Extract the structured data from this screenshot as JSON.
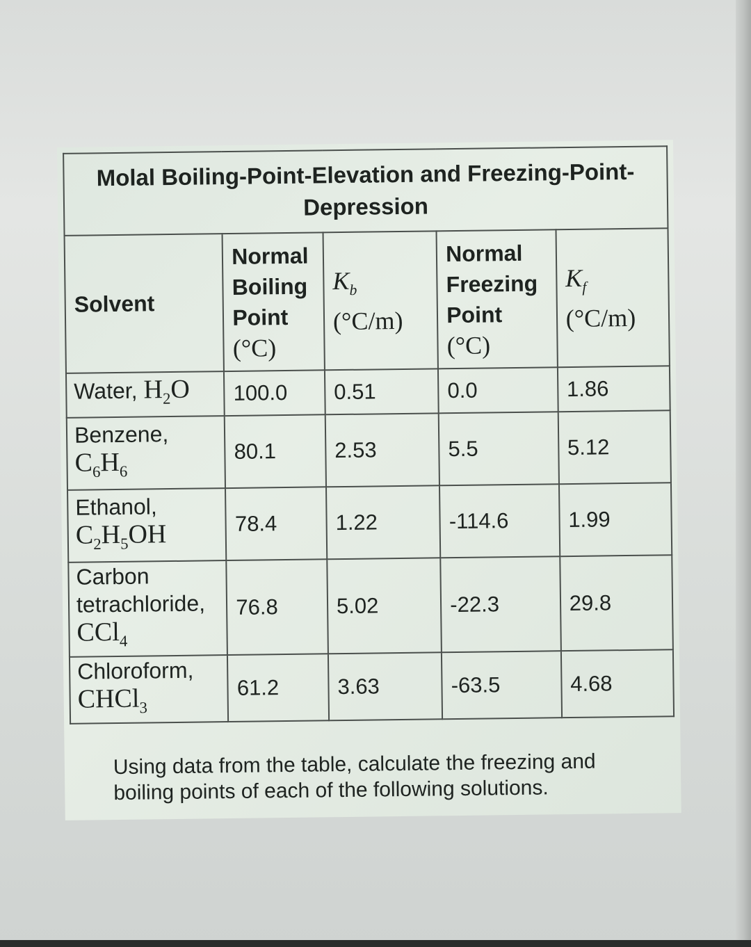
{
  "table": {
    "title": "Molal Boiling-Point-Elevation and Freezing-Point-Depression",
    "headers": {
      "solvent": "Solvent",
      "boiling_point": {
        "line1": "Normal",
        "line2": "Boiling",
        "line3": "Point",
        "unit": "(°C)"
      },
      "kb": {
        "symbol": "Kb",
        "unit": "(°C/m)"
      },
      "freezing_point": {
        "line1": "Normal",
        "line2": "Freezing",
        "line3": "Point",
        "unit": "(°C)"
      },
      "kf": {
        "symbol": "Kf",
        "unit": "(°C/m)"
      }
    },
    "rows": [
      {
        "name": "Water,",
        "formula": "H2O",
        "bp": "100.0",
        "kb": "0.51",
        "fp": "0.0",
        "kf": "1.86"
      },
      {
        "name": "Benzene,",
        "formula": "C6H6",
        "bp": "80.1",
        "kb": "2.53",
        "fp": "5.5",
        "kf": "5.12"
      },
      {
        "name": "Ethanol,",
        "formula": "C2H5OH",
        "bp": "78.4",
        "kb": "1.22",
        "fp": "-114.6",
        "kf": "1.99"
      },
      {
        "name_line1": "Carbon",
        "name_line2": "tetrachloride,",
        "formula": "CCl4",
        "bp": "76.8",
        "kb": "5.02",
        "fp": "-22.3",
        "kf": "29.8"
      },
      {
        "name": "Chloroform,",
        "formula": "CHCl3",
        "bp": "61.2",
        "kb": "3.63",
        "fp": "-63.5",
        "kf": "4.68"
      }
    ]
  },
  "question": "Using data from the table, calculate the freezing and boiling points of each of the following solutions."
}
